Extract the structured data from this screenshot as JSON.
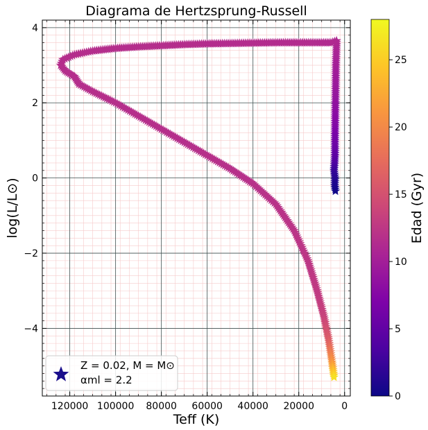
{
  "chart_data": {
    "type": "scatter",
    "title": "Diagrama de Hertzsprung-Russell",
    "xlabel": "Teff (K)",
    "ylabel": "log(L/L⊙)",
    "xlim": [
      132000,
      -2500
    ],
    "ylim": [
      -5.8,
      4.2
    ],
    "x_inverted": true,
    "grid": true,
    "minor_grid": true,
    "x_ticks": [
      {
        "value": 120000,
        "label": "120000"
      },
      {
        "value": 100000,
        "label": "100000"
      },
      {
        "value": 80000,
        "label": "80000"
      },
      {
        "value": 60000,
        "label": "60000"
      },
      {
        "value": 40000,
        "label": "40000"
      },
      {
        "value": 20000,
        "label": "20000"
      },
      {
        "value": 0,
        "label": "0"
      }
    ],
    "y_ticks": [
      {
        "value": 4,
        "label": "4"
      },
      {
        "value": 2,
        "label": "2"
      },
      {
        "value": 0,
        "label": "0"
      },
      {
        "value": -2,
        "label": "−2"
      },
      {
        "value": -4,
        "label": "−4"
      }
    ],
    "marker": "star",
    "colorbar": {
      "label": "Edad (Gyr)",
      "range": [
        0,
        28
      ],
      "colormap": "plasma",
      "ticks": [
        {
          "value": 0,
          "label": "0"
        },
        {
          "value": 5,
          "label": "5"
        },
        {
          "value": 10,
          "label": "10"
        },
        {
          "value": 15,
          "label": "15"
        },
        {
          "value": 20,
          "label": "20"
        },
        {
          "value": 25,
          "label": "25"
        }
      ]
    },
    "series": [
      {
        "points": [
          {
            "teff": 4000,
            "logL": -0.35,
            "age": 0.2
          },
          {
            "teff": 4300,
            "logL": -0.2,
            "age": 0.6
          },
          {
            "teff": 4200,
            "logL": 0.0,
            "age": 1.2
          },
          {
            "teff": 4600,
            "logL": 0.2,
            "age": 2.0
          },
          {
            "teff": 4400,
            "logL": 0.35,
            "age": 3.0
          },
          {
            "teff": 4200,
            "logL": 0.6,
            "age": 4.5
          },
          {
            "teff": 4200,
            "logL": 1.0,
            "age": 6.0
          },
          {
            "teff": 4100,
            "logL": 1.5,
            "age": 7.5
          },
          {
            "teff": 4000,
            "logL": 2.0,
            "age": 8.5
          },
          {
            "teff": 3900,
            "logL": 2.5,
            "age": 9.3
          },
          {
            "teff": 3800,
            "logL": 3.0,
            "age": 10.0
          },
          {
            "teff": 3600,
            "logL": 3.4,
            "age": 10.6
          },
          {
            "teff": 3500,
            "logL": 3.65,
            "age": 11.0
          },
          {
            "teff": 6000,
            "logL": 3.6,
            "age": 11.2
          },
          {
            "teff": 10000,
            "logL": 3.6,
            "age": 11.3
          },
          {
            "teff": 20000,
            "logL": 3.6,
            "age": 11.4
          },
          {
            "teff": 30000,
            "logL": 3.6,
            "age": 11.4
          },
          {
            "teff": 40000,
            "logL": 3.59,
            "age": 11.5
          },
          {
            "teff": 50000,
            "logL": 3.58,
            "age": 11.5
          },
          {
            "teff": 60000,
            "logL": 3.57,
            "age": 11.5
          },
          {
            "teff": 70000,
            "logL": 3.55,
            "age": 11.6
          },
          {
            "teff": 80000,
            "logL": 3.52,
            "age": 11.6
          },
          {
            "teff": 90000,
            "logL": 3.49,
            "age": 11.6
          },
          {
            "teff": 100000,
            "logL": 3.45,
            "age": 11.6
          },
          {
            "teff": 110000,
            "logL": 3.38,
            "age": 11.6
          },
          {
            "teff": 118000,
            "logL": 3.28,
            "age": 11.6
          },
          {
            "teff": 123000,
            "logL": 3.15,
            "age": 11.6
          },
          {
            "teff": 124000,
            "logL": 3.0,
            "age": 11.6
          },
          {
            "teff": 122000,
            "logL": 2.85,
            "age": 11.6
          },
          {
            "teff": 118000,
            "logL": 2.7,
            "age": 11.6
          },
          {
            "teff": 116000,
            "logL": 2.5,
            "age": 11.6
          },
          {
            "teff": 110000,
            "logL": 2.3,
            "age": 11.7
          },
          {
            "teff": 100000,
            "logL": 2.0,
            "age": 11.7
          },
          {
            "teff": 90000,
            "logL": 1.65,
            "age": 11.7
          },
          {
            "teff": 80000,
            "logL": 1.3,
            "age": 11.7
          },
          {
            "teff": 70000,
            "logL": 0.95,
            "age": 11.7
          },
          {
            "teff": 60000,
            "logL": 0.6,
            "age": 11.8
          },
          {
            "teff": 50000,
            "logL": 0.25,
            "age": 11.8
          },
          {
            "teff": 40000,
            "logL": -0.15,
            "age": 11.9
          },
          {
            "teff": 30000,
            "logL": -0.7,
            "age": 12.0
          },
          {
            "teff": 22000,
            "logL": -1.4,
            "age": 12.2
          },
          {
            "teff": 16000,
            "logL": -2.2,
            "age": 12.4
          },
          {
            "teff": 12000,
            "logL": -3.0,
            "age": 12.7
          },
          {
            "teff": 9000,
            "logL": -3.7,
            "age": 13.5
          },
          {
            "teff": 7000,
            "logL": -4.3,
            "age": 16.0
          },
          {
            "teff": 5500,
            "logL": -4.9,
            "age": 21.0
          },
          {
            "teff": 4500,
            "logL": -5.35,
            "age": 27.0
          }
        ]
      }
    ],
    "legend": {
      "location": "lower-left",
      "lines": [
        "Z = 0.02, M = M⊙",
        "αml = 2.2"
      ]
    }
  }
}
